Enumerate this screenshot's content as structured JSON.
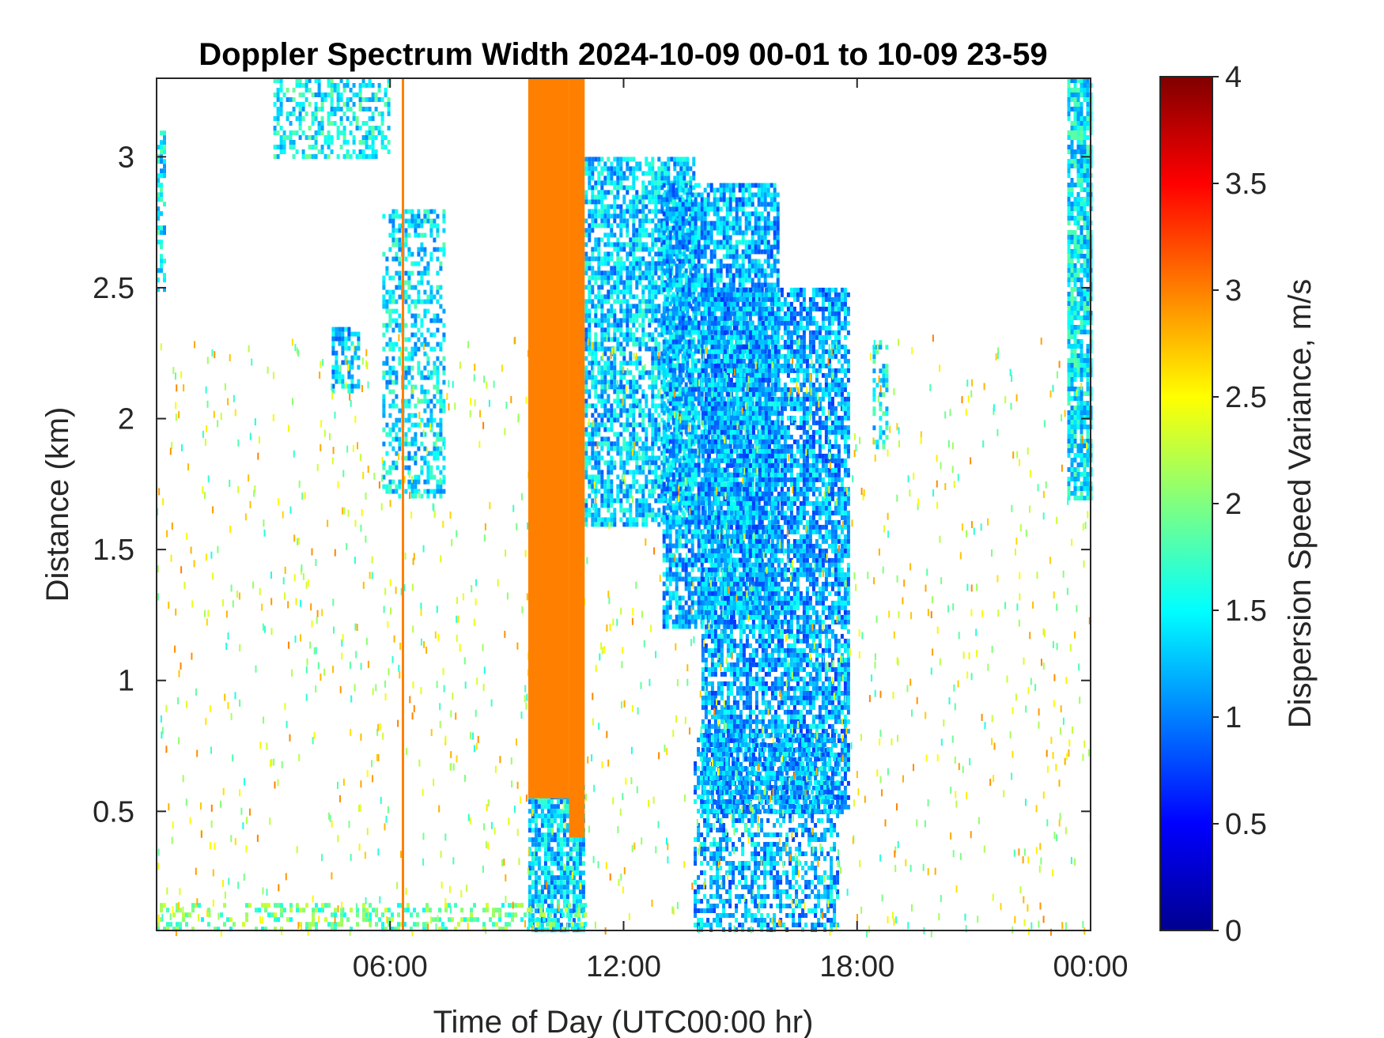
{
  "chart_data": {
    "type": "heatmap",
    "title": "Doppler Spectrum Width 2024-10-09 00-01 to 10-09 23-59",
    "xlabel": "Time of Day (UTC00:00 hr)",
    "ylabel": "Distance (km)",
    "xlim_hours": [
      0,
      24
    ],
    "ylim_km": [
      0.045,
      3.3
    ],
    "x_ticks": [
      {
        "value": 6,
        "label": "06:00"
      },
      {
        "value": 12,
        "label": "12:00"
      },
      {
        "value": 18,
        "label": "18:00"
      },
      {
        "value": 24,
        "label": "00:00"
      }
    ],
    "y_ticks": [
      {
        "value": 0.5,
        "label": "0.5"
      },
      {
        "value": 1,
        "label": "1"
      },
      {
        "value": 1.5,
        "label": "1.5"
      },
      {
        "value": 2,
        "label": "2"
      },
      {
        "value": 2.5,
        "label": "2.5"
      },
      {
        "value": 3,
        "label": "3"
      }
    ],
    "colorbar": {
      "label": "Dispersion Speed Variance, m/s",
      "range": [
        0,
        4
      ],
      "colormap": "jet",
      "ticks": [
        {
          "value": 0,
          "label": "0"
        },
        {
          "value": 0.5,
          "label": "0.5"
        },
        {
          "value": 1,
          "label": "1"
        },
        {
          "value": 1.5,
          "label": "1.5"
        },
        {
          "value": 2,
          "label": "2"
        },
        {
          "value": 2.5,
          "label": "2.5"
        },
        {
          "value": 3,
          "label": "3"
        },
        {
          "value": 3.5,
          "label": "3.5"
        },
        {
          "value": 4,
          "label": "4"
        }
      ]
    },
    "saturated_bands": [
      {
        "x_start_hours": 9.55,
        "x_end_hours": 10.6,
        "y_start_km": 0.55,
        "y_end_km": 3.3,
        "value": 3.0
      },
      {
        "x_start_hours": 10.6,
        "x_end_hours": 11.0,
        "y_start_km": 0.4,
        "y_end_km": 3.3,
        "value": 3.0
      },
      {
        "x_start_hours": 6.3,
        "x_end_hours": 6.36,
        "y_start_km": 0.045,
        "y_end_km": 3.3,
        "value": 3.0
      }
    ],
    "echo_regions": [
      {
        "x_start_hours": 11.0,
        "x_end_hours": 13.8,
        "y_start_km": 1.6,
        "y_end_km": 3.0,
        "value_mean": 1.3,
        "density": 0.7
      },
      {
        "x_start_hours": 13.0,
        "x_end_hours": 16.0,
        "y_start_km": 1.2,
        "y_end_km": 2.9,
        "value_mean": 1.2,
        "density": 0.75
      },
      {
        "x_start_hours": 14.0,
        "x_end_hours": 17.8,
        "y_start_km": 0.5,
        "y_end_km": 2.5,
        "value_mean": 1.15,
        "density": 0.75
      },
      {
        "x_start_hours": 13.8,
        "x_end_hours": 17.5,
        "y_start_km": 0.045,
        "y_end_km": 0.8,
        "value_mean": 1.2,
        "density": 0.5
      },
      {
        "x_start_hours": 9.55,
        "x_end_hours": 11.0,
        "y_start_km": 0.045,
        "y_end_km": 0.6,
        "value_mean": 1.3,
        "density": 0.8
      },
      {
        "x_start_hours": 5.8,
        "x_end_hours": 7.4,
        "y_start_km": 1.7,
        "y_end_km": 2.8,
        "value_mean": 1.4,
        "density": 0.45
      },
      {
        "x_start_hours": 4.5,
        "x_end_hours": 5.2,
        "y_start_km": 2.1,
        "y_end_km": 2.35,
        "value_mean": 1.3,
        "density": 0.6
      },
      {
        "x_start_hours": 3.0,
        "x_end_hours": 6.0,
        "y_start_km": 3.0,
        "y_end_km": 3.3,
        "value_mean": 1.5,
        "density": 0.45
      },
      {
        "x_start_hours": 23.4,
        "x_end_hours": 24.0,
        "y_start_km": 1.7,
        "y_end_km": 3.3,
        "value_mean": 1.45,
        "density": 0.8
      },
      {
        "x_start_hours": 0.0,
        "x_end_hours": 0.2,
        "y_start_km": 2.5,
        "y_end_km": 3.1,
        "value_mean": 1.5,
        "density": 0.5
      },
      {
        "x_start_hours": 0.0,
        "x_end_hours": 11.0,
        "y_start_km": 0.045,
        "y_end_km": 0.15,
        "value_mean": 1.9,
        "density": 0.35
      },
      {
        "x_start_hours": 18.4,
        "x_end_hours": 18.8,
        "y_start_km": 1.9,
        "y_end_km": 2.3,
        "value_mean": 1.5,
        "density": 0.4
      }
    ],
    "grid": false,
    "legend": "colorbar-right"
  }
}
